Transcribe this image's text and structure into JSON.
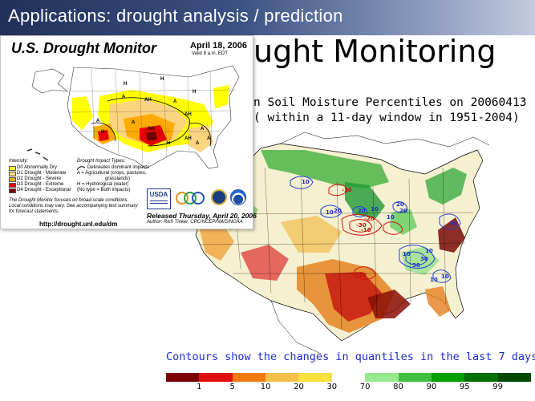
{
  "slide": {
    "title": "Applications:  drought analysis / prediction"
  },
  "soil_moisture": {
    "title_visible": "ught Monitoring",
    "line1": "n Soil Moisture Percentiles on 20060413",
    "line2": "( within a 11-day window in 1951-2004)",
    "contour_caption": "Contours show the changes in quantiles in the last 7 days.",
    "contour_labels": [
      "10",
      "-10",
      "10",
      "20",
      "20",
      "10",
      "20",
      "20",
      "10",
      "-30",
      "-10",
      "-20",
      "30",
      "30",
      "30",
      "10",
      "10",
      "-10",
      "10",
      "10"
    ],
    "scale_labels": [
      "1",
      "5",
      "10",
      "20",
      "30",
      "70",
      "80",
      "90",
      "95",
      "99"
    ],
    "scale_colors": [
      "#7a0000",
      "#e01010",
      "#f07a10",
      "#f5c04a",
      "#f7e040",
      "#ffffff",
      "#98e890",
      "#40c040",
      "#00a000",
      "#007000",
      "#004800"
    ]
  },
  "drought_monitor": {
    "title": "U.S. Drought Monitor",
    "date": "April 18, 2006",
    "valid": "Valid 8 a.m. EDT",
    "intensity_heading": "Intensity:",
    "intensity": [
      {
        "label": "D0 Abnormally Dry",
        "color": "#ffff00"
      },
      {
        "label": "D1 Drought - Moderate",
        "color": "#fcd37f"
      },
      {
        "label": "D2 Drought - Severe",
        "color": "#ffaa00"
      },
      {
        "label": "D3 Drought - Extreme",
        "color": "#e60000"
      },
      {
        "label": "D4 Drought - Exceptional",
        "color": "#730000"
      }
    ],
    "impact_heading": "Drought Impact Types:",
    "impacts": [
      "Delineates dominant impacts",
      "A = Agricultural (crops, pastures,",
      "grasslands)",
      "H = Hydrological (water)",
      "(No type = Both impacts)"
    ],
    "footnote": [
      "The Drought Monitor focuses on broad-scale conditions.",
      "Local conditions may vary.  See accompanying text summary",
      "for forecast statements."
    ],
    "map_labels": [
      "A",
      "AH",
      "A",
      "AH",
      "H",
      "H",
      "H",
      "A",
      "H",
      "A",
      "AH",
      "H",
      "A",
      "A",
      "AH",
      "A"
    ],
    "url": "http://drought.unl.edu/dm",
    "released": "Released Thursday, April 20, 2006",
    "author": "Author:  Rich Tinker, CPC/NCEP/NWS/NOAA",
    "logos": {
      "usda": "USDA"
    }
  }
}
